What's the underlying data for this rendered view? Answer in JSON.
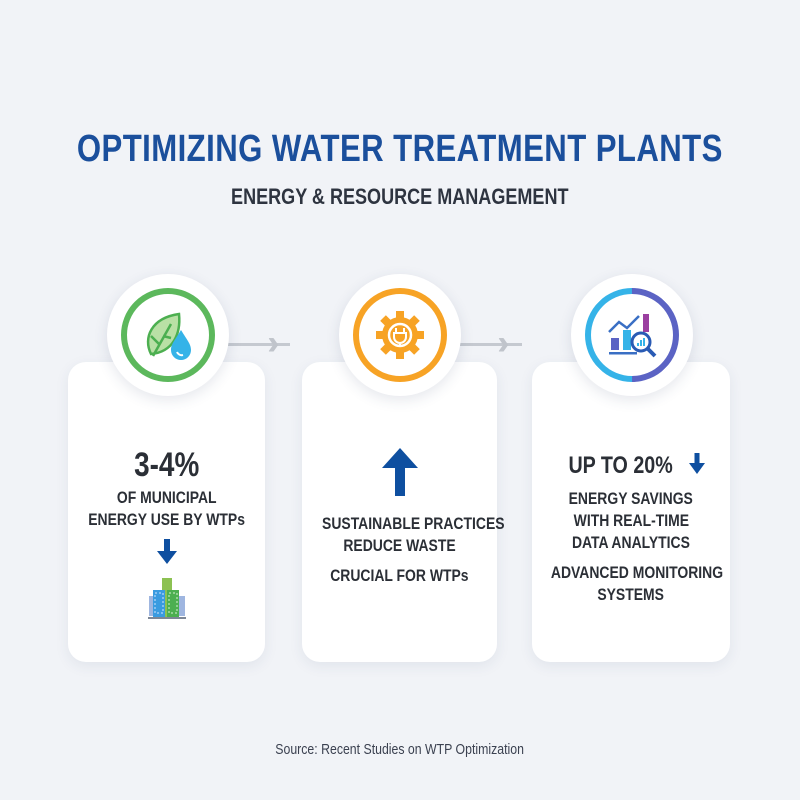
{
  "header": {
    "title": "OPTIMIZING WATER TREATMENT PLANTS",
    "subtitle": "ENERGY & RESOURCE MANAGEMENT"
  },
  "colors": {
    "title": "#1b4f9c",
    "green": "#5cb85c",
    "orange": "#f7a325",
    "purple": "#5b63c4",
    "cyan": "#35b3e8",
    "arrow": "#0e4fa0"
  },
  "cards": [
    {
      "icon": "leaf-water-drop-icon",
      "stat": "3-4%",
      "lines": [
        "OF MUNICIPAL",
        "ENERGY USE BY WTPs"
      ],
      "arrow": "down-arrow-icon",
      "extra_icon": "city-buildings-icon"
    },
    {
      "icon": "gear-plug-icon",
      "arrow": "up-arrow-icon",
      "lines": [
        "SUSTAINABLE PRACTICES",
        "REDUCE WASTE"
      ],
      "lines2": [
        "CRUCIAL FOR WTPs"
      ]
    },
    {
      "icon": "analytics-magnifier-icon",
      "stat": "UP TO 20%",
      "arrow": "down-arrow-icon",
      "lines": [
        "ENERGY SAVINGS",
        "WITH REAL-TIME",
        "DATA ANALYTICS"
      ],
      "lines2": [
        "ADVANCED MONITORING",
        "SYSTEMS"
      ]
    }
  ],
  "source": "Source: Recent Studies on WTP Optimization"
}
